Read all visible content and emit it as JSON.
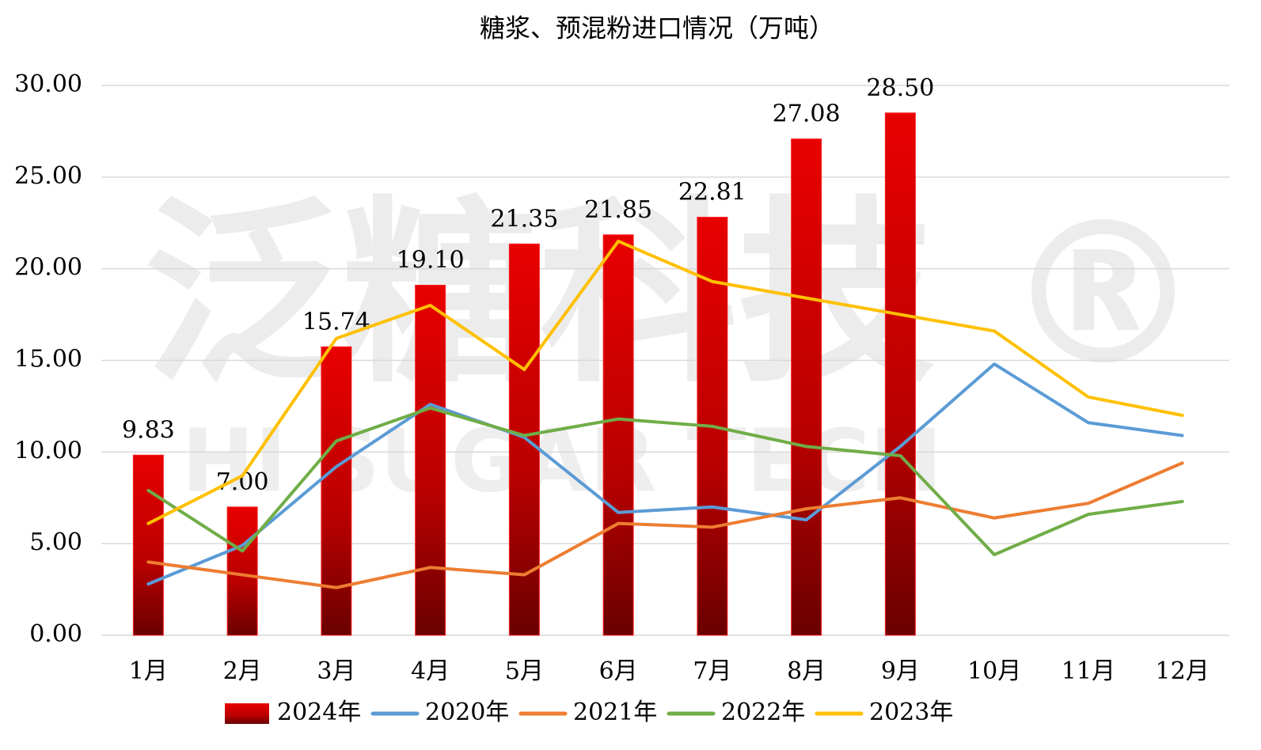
{
  "chart_data": {
    "type": "bar-line",
    "title": "糖浆、预混粉进口情况（万吨）",
    "watermark": "泛糖科技 ®",
    "watermark_en": "HI SUGAR TECH",
    "categories": [
      "1月",
      "2月",
      "3月",
      "4月",
      "5月",
      "6月",
      "7月",
      "8月",
      "9月",
      "10月",
      "11月",
      "12月"
    ],
    "ylim": [
      0,
      30
    ],
    "yticks": [
      {
        "value": 0,
        "label": "0.00"
      },
      {
        "value": 5,
        "label": "5.00"
      },
      {
        "value": 10,
        "label": "10.00"
      },
      {
        "value": 15,
        "label": "15.00"
      },
      {
        "value": 20,
        "label": "20.00"
      },
      {
        "value": 25,
        "label": "25.00"
      },
      {
        "value": 30,
        "label": "30.00"
      }
    ],
    "grid": true,
    "legend": "bottom",
    "series": [
      {
        "name": "2024年",
        "type": "bar",
        "color": "#e00000",
        "values": [
          9.83,
          7,
          15.74,
          19.1,
          21.35,
          21.85,
          22.81,
          27.08,
          28.5,
          null,
          null,
          null
        ],
        "value_labels": [
          "9.83",
          "7.00",
          "15.74",
          "19.10",
          "21.35",
          "21.85",
          "22.81",
          "27.08",
          "28.50",
          null,
          null,
          null
        ]
      },
      {
        "name": "2020年",
        "type": "line",
        "color": "#5b9bd5",
        "values": [
          2.8,
          4.9,
          9.2,
          12.6,
          10.8,
          6.7,
          7.0,
          6.3,
          10.3,
          14.8,
          11.6,
          10.9
        ]
      },
      {
        "name": "2021年",
        "type": "line",
        "color": "#ed7d31",
        "values": [
          4.0,
          3.3,
          2.6,
          3.7,
          3.3,
          6.1,
          5.9,
          6.9,
          7.5,
          6.4,
          7.2,
          9.4
        ]
      },
      {
        "name": "2022年",
        "type": "line",
        "color": "#70ad47",
        "values": [
          7.9,
          4.6,
          10.6,
          12.4,
          10.9,
          11.8,
          11.4,
          10.3,
          9.8,
          4.4,
          6.6,
          7.3
        ]
      },
      {
        "name": "2023年",
        "type": "line",
        "color": "#ffc000",
        "values": [
          6.1,
          8.7,
          16.2,
          18.0,
          14.5,
          21.5,
          19.3,
          18.4,
          17.5,
          16.6,
          13.0,
          12.0
        ]
      }
    ]
  }
}
